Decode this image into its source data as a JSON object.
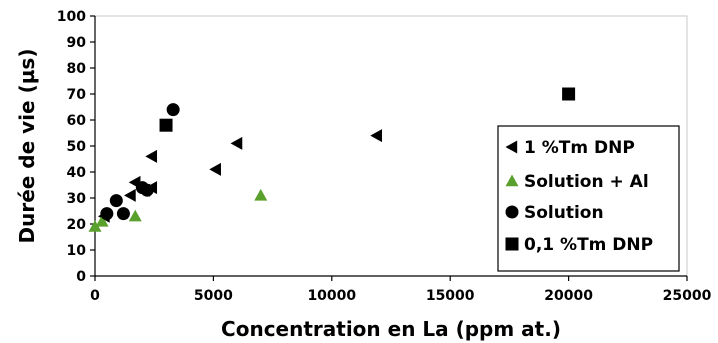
{
  "chart_data": {
    "type": "scatter",
    "xlabel": "Concentration en La (ppm at.)",
    "ylabel": "Durée de vie (µs)",
    "xlim": [
      0,
      25000
    ],
    "ylim": [
      0,
      100
    ],
    "x_ticks": [
      "0",
      "5000",
      "10000",
      "15000",
      "20000",
      "25000"
    ],
    "y_ticks": [
      "0",
      "10",
      "20",
      "30",
      "40",
      "50",
      "60",
      "70",
      "80",
      "90",
      "100"
    ],
    "grid": false,
    "legend_position": "right",
    "series": [
      {
        "name": "1 %Tm DNP",
        "marker": "triangle-left",
        "color": "#000000",
        "points": [
          {
            "x": 400,
            "y": 23
          },
          {
            "x": 1500,
            "y": 31
          },
          {
            "x": 1700,
            "y": 36
          },
          {
            "x": 2100,
            "y": 33
          },
          {
            "x": 2400,
            "y": 34
          },
          {
            "x": 2400,
            "y": 46
          },
          {
            "x": 5100,
            "y": 41
          },
          {
            "x": 6000,
            "y": 51
          },
          {
            "x": 11900,
            "y": 54
          }
        ]
      },
      {
        "name": "Solution + Al",
        "marker": "triangle-up",
        "color": "#5aa02c",
        "points": [
          {
            "x": 0,
            "y": 19
          },
          {
            "x": 300,
            "y": 21
          },
          {
            "x": 1700,
            "y": 23
          },
          {
            "x": 7000,
            "y": 31
          }
        ]
      },
      {
        "name": "Solution",
        "marker": "circle",
        "color": "#000000",
        "points": [
          {
            "x": 500,
            "y": 24
          },
          {
            "x": 900,
            "y": 29
          },
          {
            "x": 1200,
            "y": 24
          },
          {
            "x": 2000,
            "y": 34
          },
          {
            "x": 2200,
            "y": 33
          },
          {
            "x": 3300,
            "y": 64
          }
        ]
      },
      {
        "name": "0,1 %Tm DNP",
        "marker": "square",
        "color": "#000000",
        "points": [
          {
            "x": 3000,
            "y": 58
          },
          {
            "x": 20000,
            "y": 70
          }
        ]
      }
    ]
  }
}
